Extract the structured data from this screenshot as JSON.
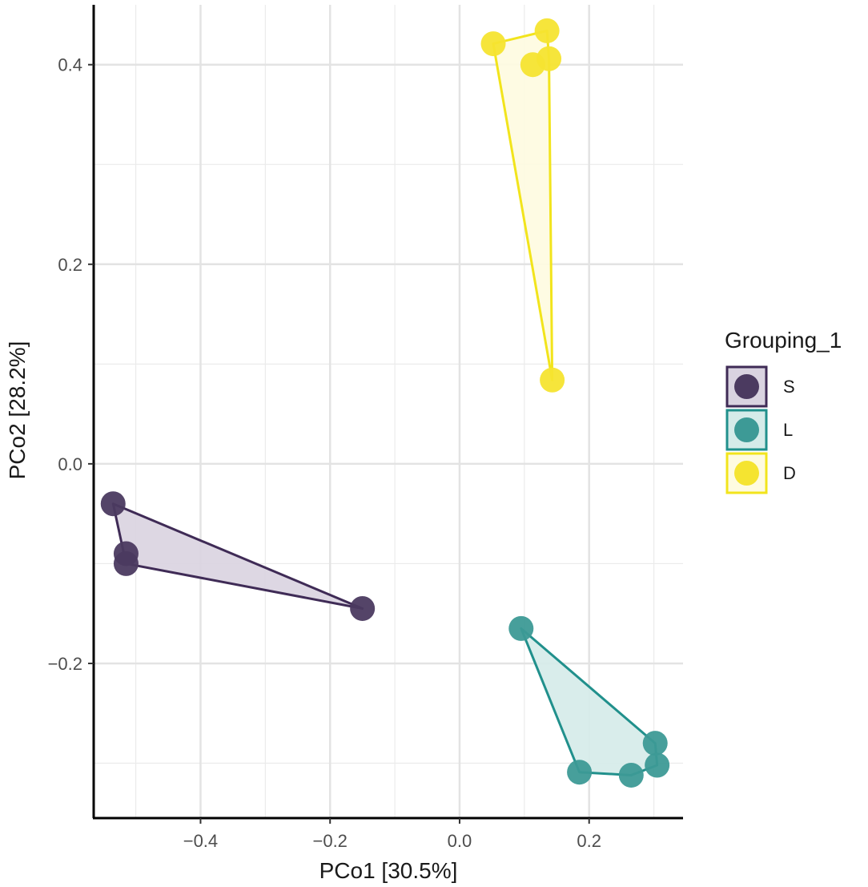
{
  "chart_data": {
    "type": "scatter",
    "title": "",
    "xlabel": "PCo1 [30.5%]",
    "ylabel": "PCo2 [28.2%]",
    "xlim": [
      -0.565,
      0.345
    ],
    "ylim": [
      -0.355,
      0.46
    ],
    "x_major_ticks": [
      -0.4,
      -0.2,
      0.0,
      0.2
    ],
    "x_tick_labels": [
      "−0.4",
      "−0.2",
      "0.0",
      "0.2"
    ],
    "x_minor_ticks": [
      -0.5,
      -0.3,
      -0.1,
      0.1,
      0.3
    ],
    "y_major_ticks": [
      -0.2,
      0.0,
      0.2,
      0.4
    ],
    "y_tick_labels": [
      "−0.2",
      "0.0",
      "0.2",
      "0.4"
    ],
    "y_minor_ticks": [
      -0.3,
      -0.1,
      0.1,
      0.3
    ],
    "grid": true,
    "legend": {
      "title": "Grouping_1",
      "position": "right"
    },
    "series": [
      {
        "name": "S",
        "color": "#3F2B56",
        "point_color": "#4B3A60",
        "fill": "#D9D3E0",
        "points": [
          [
            -0.535,
            -0.04
          ],
          [
            -0.515,
            -0.09
          ],
          [
            -0.515,
            -0.1
          ],
          [
            -0.15,
            -0.145
          ]
        ],
        "hull_order": [
          0,
          3,
          2
        ]
      },
      {
        "name": "L",
        "color": "#21908C",
        "point_color": "#3D9A96",
        "fill": "#D5EBE9",
        "points": [
          [
            0.095,
            -0.165
          ],
          [
            0.302,
            -0.28
          ],
          [
            0.305,
            -0.302
          ],
          [
            0.265,
            -0.312
          ],
          [
            0.185,
            -0.309
          ]
        ],
        "hull_order": [
          0,
          1,
          2,
          3,
          4
        ]
      },
      {
        "name": "D",
        "color": "#F2E41C",
        "point_color": "#F5E430",
        "fill": "#FEFBE0",
        "points": [
          [
            0.052,
            0.421
          ],
          [
            0.135,
            0.434
          ],
          [
            0.138,
            0.406
          ],
          [
            0.113,
            0.4
          ],
          [
            0.143,
            0.084
          ]
        ],
        "hull_order": [
          0,
          1,
          2,
          4
        ]
      }
    ]
  }
}
